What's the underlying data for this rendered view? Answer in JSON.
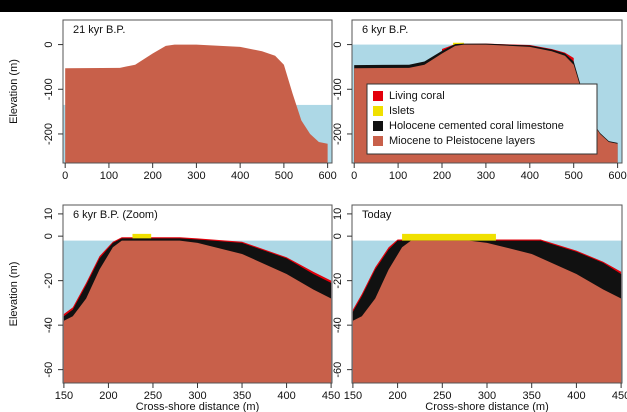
{
  "chart_data": [
    {
      "type": "area",
      "title": "21 kyr B.P.",
      "ylabel": "Elevation (m)",
      "xlim": [
        -5,
        610
      ],
      "ylim": [
        -265,
        55
      ],
      "xticks": [
        0,
        100,
        200,
        300,
        400,
        500,
        600
      ],
      "yticks": [
        0,
        -100,
        -200
      ],
      "sea_level": -135,
      "water_color": "#add8e6",
      "series": [
        {
          "name": "Miocene to Pleistocene layers",
          "color": "#c8604a",
          "x": [
            0,
            125,
            160,
            200,
            230,
            250,
            300,
            400,
            450,
            480,
            500,
            520,
            540,
            560,
            580,
            600
          ],
          "values": [
            -53,
            -52,
            -45,
            -20,
            -3,
            0,
            0,
            -5,
            -15,
            -25,
            -45,
            -110,
            -170,
            -200,
            -218,
            -222
          ]
        }
      ]
    },
    {
      "type": "area",
      "title": "6 kyr B.P.",
      "legend": "inside-right",
      "xlim": [
        -5,
        610
      ],
      "ylim": [
        -265,
        55
      ],
      "xticks": [
        0,
        100,
        200,
        300,
        400,
        500,
        600
      ],
      "yticks": [
        0,
        -100,
        -200
      ],
      "sea_level": 0,
      "water_color": "#add8e6",
      "series": [
        {
          "name": "Living coral",
          "color": "#e3000b",
          "x": [
            200,
            230,
            300,
            400,
            450,
            480,
            500
          ],
          "values": [
            -10,
            1,
            2,
            -1,
            -10,
            -18,
            -30
          ]
        },
        {
          "name": "Islets",
          "color": "#f0e000",
          "x": [
            225,
            250
          ],
          "values": [
            4,
            4
          ]
        },
        {
          "name": "Holocene cemented coral limestone",
          "color": "#111111",
          "x": [
            0,
            125,
            160,
            200,
            230,
            250,
            300,
            400,
            450,
            480,
            500,
            520,
            540,
            560,
            580,
            600
          ],
          "values": [
            -46,
            -45,
            -38,
            -14,
            1,
            2,
            2,
            -2,
            -11,
            -20,
            -38,
            -105,
            -168,
            -198,
            -216,
            -220
          ]
        },
        {
          "name": "Miocene to Pleistocene layers",
          "color": "#c8604a",
          "x": [
            0,
            125,
            160,
            200,
            230,
            250,
            300,
            400,
            450,
            480,
            500,
            520,
            540,
            560,
            580,
            600
          ],
          "values": [
            -53,
            -52,
            -45,
            -20,
            -3,
            0,
            0,
            -5,
            -15,
            -25,
            -45,
            -110,
            -170,
            -200,
            -218,
            -222
          ]
        }
      ]
    },
    {
      "type": "area",
      "title": "6 kyr B.P. (Zoom)",
      "ylabel": "Elevation (m)",
      "xlabel": "Cross-shore distance (m)",
      "xlim": [
        149,
        451
      ],
      "ylim": [
        -66,
        14
      ],
      "xticks": [
        150,
        200,
        250,
        300,
        350,
        400,
        450
      ],
      "yticks": [
        10,
        0,
        -20,
        -40,
        -60
      ],
      "sea_level": -2,
      "water_color": "#add8e6",
      "series": [
        {
          "name": "Living coral",
          "color": "#e3000b",
          "x": [
            150,
            160,
            175,
            190,
            205,
            215,
            280,
            300,
            350,
            400,
            430,
            450
          ],
          "values": [
            -35,
            -32,
            -21,
            -9,
            -2.5,
            -0.5,
            -0.5,
            -1,
            -2.5,
            -9.5,
            -16,
            -20
          ]
        },
        {
          "name": "Islets",
          "color": "#f0e000",
          "x": [
            227,
            248
          ],
          "values": [
            1,
            1
          ]
        },
        {
          "name": "Holocene cemented coral limestone",
          "color": "#111111",
          "x": [
            150,
            160,
            175,
            190,
            205,
            215,
            280,
            300,
            350,
            400,
            430,
            450
          ],
          "values": [
            -36,
            -33,
            -22,
            -10,
            -3,
            -1,
            -1,
            -1.5,
            -3,
            -10,
            -17,
            -21
          ]
        },
        {
          "name": "Miocene to Pleistocene layers",
          "color": "#c8604a",
          "x": [
            150,
            160,
            175,
            190,
            205,
            215,
            240,
            280,
            300,
            350,
            400,
            430,
            450
          ],
          "values": [
            -38,
            -36,
            -28,
            -15,
            -5,
            -2,
            -2,
            -2,
            -3,
            -8,
            -17,
            -24,
            -28
          ]
        }
      ]
    },
    {
      "type": "area",
      "title": "Today",
      "xlabel": "Cross-shore distance (m)",
      "xlim": [
        149,
        451
      ],
      "ylim": [
        -66,
        14
      ],
      "xticks": [
        150,
        200,
        250,
        300,
        350,
        400,
        450
      ],
      "yticks": [
        10,
        0,
        -20,
        -40,
        -60
      ],
      "sea_level": -2,
      "water_color": "#add8e6",
      "series": [
        {
          "name": "Living coral",
          "color": "#e3000b",
          "x": [
            150,
            160,
            175,
            190,
            200,
            360,
            400,
            430,
            450
          ],
          "values": [
            -33,
            -26,
            -14,
            -5,
            -1.5,
            -1.5,
            -6.5,
            -11.5,
            -16
          ]
        },
        {
          "name": "Islets",
          "color": "#f0e000",
          "x": [
            205,
            310
          ],
          "values": [
            1,
            1
          ]
        },
        {
          "name": "Holocene cemented coral limestone",
          "color": "#111111",
          "x": [
            150,
            160,
            175,
            190,
            200,
            360,
            400,
            430,
            450
          ],
          "values": [
            -34,
            -27,
            -15,
            -6,
            -2,
            -2,
            -7,
            -12,
            -17
          ]
        },
        {
          "name": "Miocene to Pleistocene layers",
          "color": "#c8604a",
          "x": [
            150,
            160,
            175,
            190,
            205,
            215,
            240,
            280,
            300,
            350,
            400,
            430,
            450
          ],
          "values": [
            -38,
            -36,
            -28,
            -15,
            -5,
            -2,
            -2,
            -2,
            -3,
            -8,
            -17,
            -24,
            -28
          ]
        }
      ]
    }
  ]
}
